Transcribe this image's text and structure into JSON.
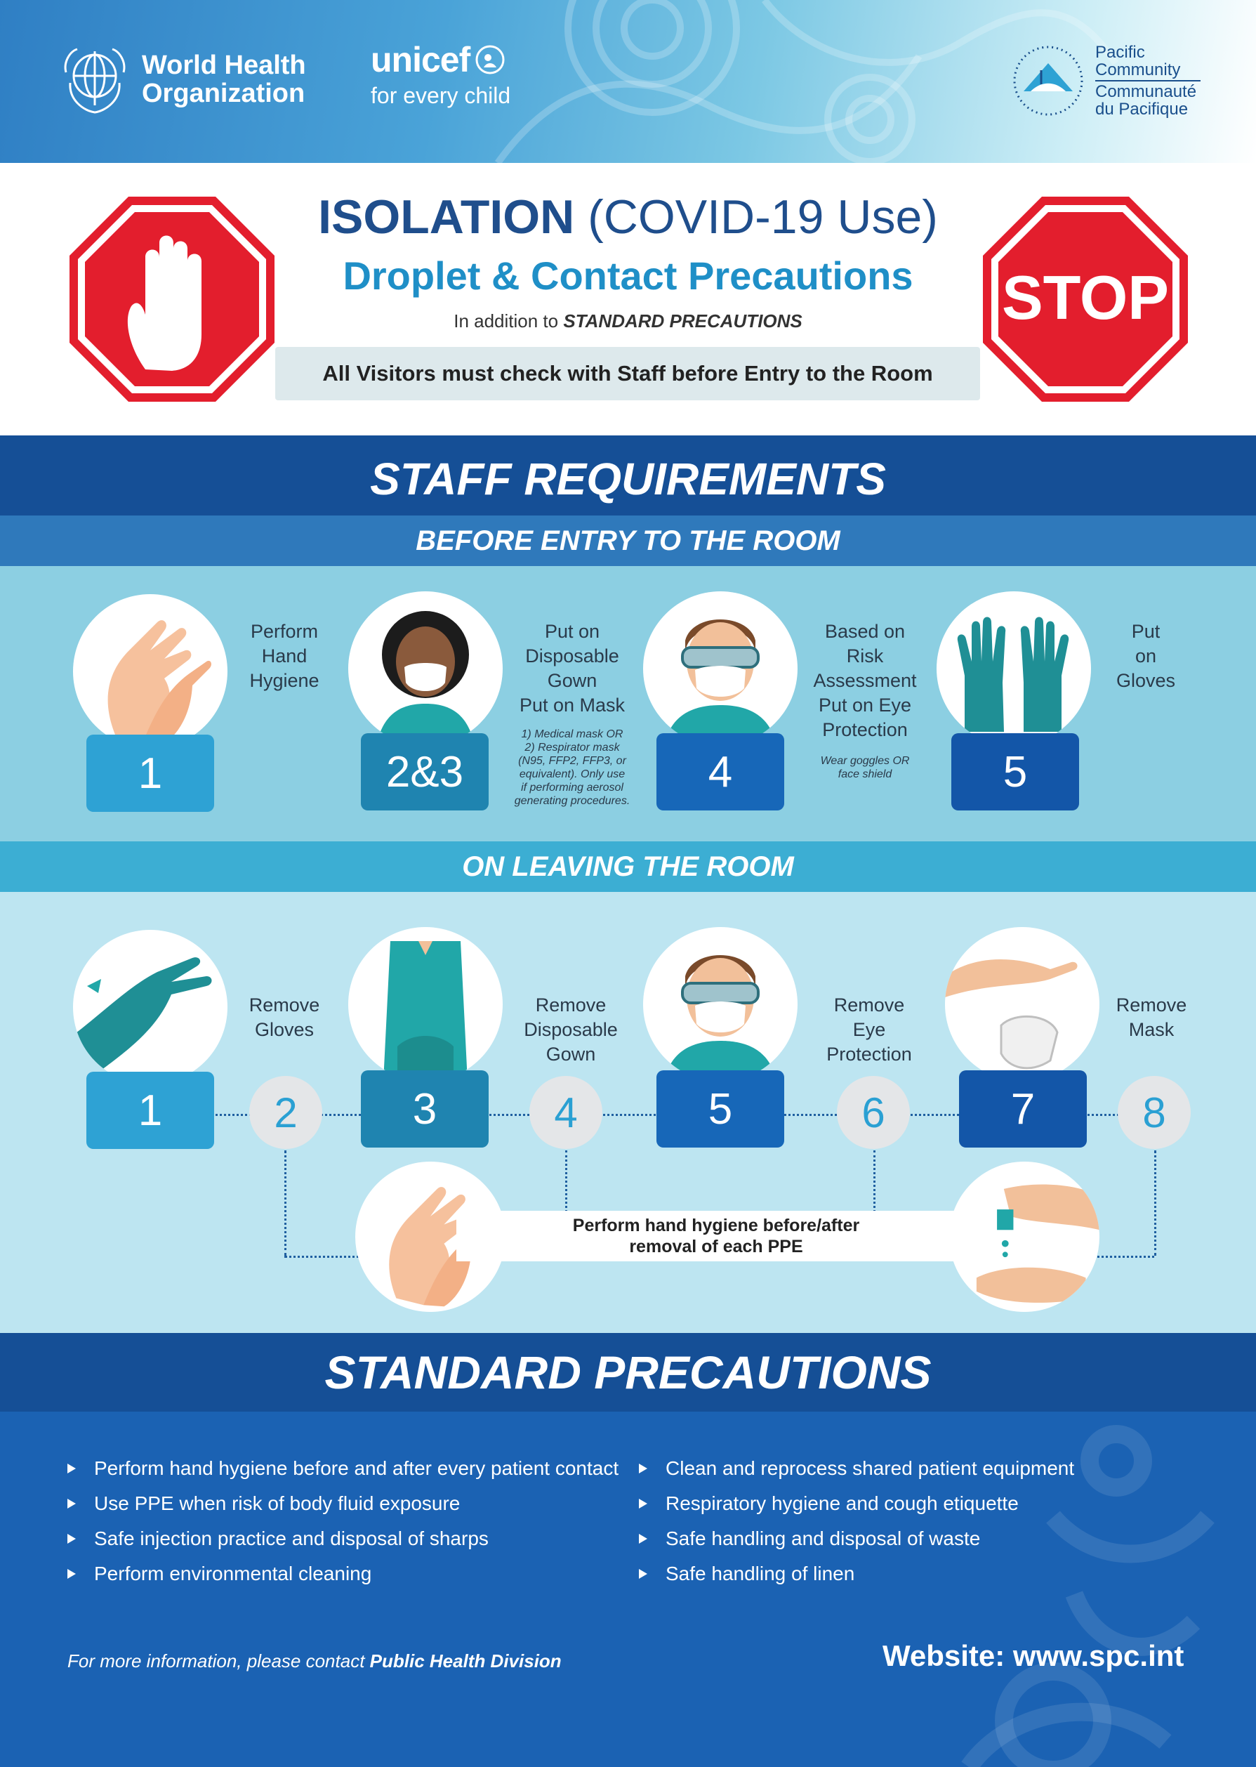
{
  "header": {
    "who": {
      "line1": "World Health",
      "line2": "Organization"
    },
    "unicef": {
      "name": "unicef",
      "tagline": "for every child"
    },
    "spc": {
      "line1": "Pacific",
      "line2": "Community",
      "line3": "Communauté",
      "line4": "du Pacifique"
    }
  },
  "title": {
    "main_bold": "ISOLATION",
    "main_rest": " (COVID-19 Use)",
    "sub": "Droplet & Contact Precautions",
    "note_prefix": "In addition to ",
    "note_emph": "STANDARD PRECAUTIONS",
    "visitors": "All Visitors must check with Staff before Entry to the Room",
    "stop_sign_text": "STOP"
  },
  "staff": {
    "heading": "STAFF REQUIREMENTS",
    "before": {
      "heading": "BEFORE ENTRY TO THE ROOM",
      "steps": [
        {
          "num": "1",
          "text": "Perform\nHand\nHygiene",
          "note": ""
        },
        {
          "num": "2&3",
          "text": "Put on\nDisposable\nGown\nPut on Mask",
          "note": "1) Medical mask OR\n2) Respirator mask\n(N95, FFP2, FFP3, or\nequivalent). Only use\nif performing aerosol\ngenerating procedures."
        },
        {
          "num": "4",
          "text": "Based on\nRisk\nAssessment\nPut on Eye\nProtection",
          "note": "Wear goggles OR\nface shield"
        },
        {
          "num": "5",
          "text": "Put\non\nGloves",
          "note": ""
        }
      ]
    },
    "leaving": {
      "heading": "ON LEAVING THE ROOM",
      "steps": [
        {
          "num": "1",
          "text": "Remove\nGloves"
        },
        {
          "num": "3",
          "text": "Remove\nDisposable\nGown"
        },
        {
          "num": "5",
          "text": "Remove\nEye\nProtection"
        },
        {
          "num": "7",
          "text": "Remove\nMask"
        }
      ],
      "hygiene_nums": [
        "2",
        "4",
        "6",
        "8"
      ],
      "hygiene_text": "Perform hand hygiene before/after\nremoval of each PPE"
    }
  },
  "standard": {
    "heading": "STANDARD PRECAUTIONS",
    "left": [
      "Perform hand hygiene before and after every patient contact",
      "Use PPE when risk of body fluid exposure",
      "Safe injection practice and disposal of sharps",
      "Perform environmental cleaning"
    ],
    "right": [
      "Clean and reprocess shared patient equipment",
      "Respiratory hygiene and cough etiquette",
      "Safe handling and disposal of waste",
      "Safe handling of linen"
    ],
    "contact_prefix": "For more information, please contact ",
    "contact_emph": "Public Health Division",
    "website": "Website: www.spc.int"
  },
  "colors": {
    "dark_band": "#154f96",
    "stop_red": "#e31e2d",
    "title_blue": "#1f4e8c",
    "accent_blue": "#1f8fc7"
  },
  "icons": [
    "who-emblem-icon",
    "unicef-emblem-icon",
    "spc-emblem-icon",
    "stop-hand-icon",
    "stop-sign-icon",
    "hand-wash-icon",
    "gloves-icon",
    "mask-icon",
    "goggles-icon",
    "gown-icon",
    "sanitizer-icon"
  ]
}
